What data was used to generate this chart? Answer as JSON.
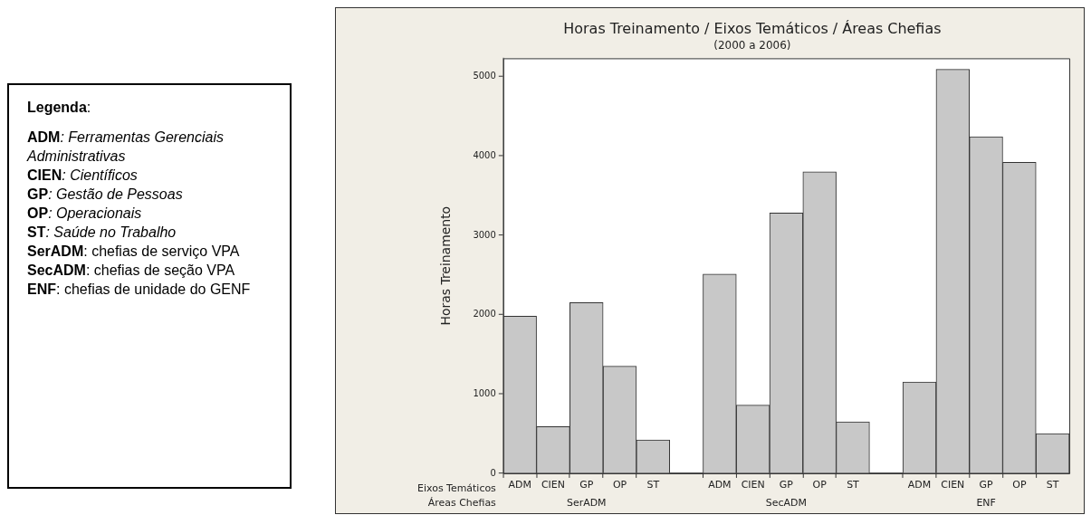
{
  "chart_data": {
    "type": "bar",
    "title": "Horas Treinamento / Eixos Temáticos / Áreas Chefias",
    "subtitle": "(2000 a 2006)",
    "ylabel": "Horas Treinamento",
    "categories": [
      "ADM",
      "CIEN",
      "GP",
      "OP",
      "ST",
      null,
      "ADM",
      "CIEN",
      "GP",
      "OP",
      "ST",
      null,
      "ADM",
      "CIEN",
      "GP",
      "OP",
      "ST"
    ],
    "values": [
      1980,
      590,
      2150,
      1350,
      420,
      null,
      2510,
      860,
      3280,
      3800,
      650,
      null,
      1150,
      5090,
      4240,
      3920,
      500
    ],
    "color": "#c8c8c8",
    "ylim": [
      0,
      5230
    ],
    "yticks": [
      0,
      1000,
      2000,
      3000,
      4000,
      5000
    ],
    "grid": false,
    "annotations": [
      "Eixos Temáticos",
      "Áreas Chefias",
      "SerADM",
      "SecADM",
      "ENF",
      "Legenda:",
      "ADM: Ferramentas Gerenciais Administrativas",
      "CIEN: Científicos",
      "GP: Gestão de Pessoas",
      "OP: Operacionais",
      "ST: Saúde no Trabalho",
      "SerADM: chefias de serviço VPA",
      "SecADM: chefias de seção VPA",
      "ENF: chefias de unidade do GENF"
    ]
  }
}
